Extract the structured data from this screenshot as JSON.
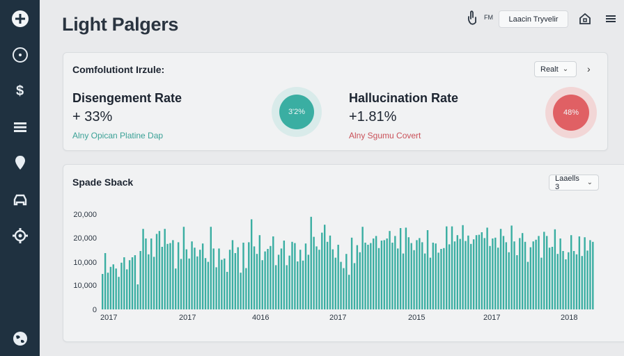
{
  "sidebar": {
    "items": [
      {
        "icon": "plus-circle-icon"
      },
      {
        "icon": "clock-icon"
      },
      {
        "icon": "dollar-icon"
      },
      {
        "icon": "list-icon"
      },
      {
        "icon": "pin-icon"
      },
      {
        "icon": "car-icon"
      },
      {
        "icon": "gear-icon"
      },
      {
        "icon": "globe-icon"
      }
    ]
  },
  "header": {
    "title": "Light Palgers",
    "fm_label": "FM",
    "travel_button": "Laacin Tryvelir"
  },
  "summary": {
    "heading": "Comfolutiont Irzule:",
    "select_label": "Realt",
    "metrics": [
      {
        "title": "Disengement Rate",
        "value": "+ 33%",
        "subtitle": "Alny Opican Platine Dap",
        "ring_label": "3'2%",
        "color": "#3aaea2"
      },
      {
        "title": "Hallucination Rate",
        "value": "+1.81%",
        "subtitle": "Alny Sgumu Covert",
        "ring_label": "48%",
        "color": "#e06064"
      }
    ]
  },
  "chart_panel": {
    "heading": "Spade Sback",
    "select_label": "Laaells 3"
  },
  "chart_data": {
    "type": "bar",
    "title": "Spade Sback",
    "y_tick_labels": [
      "0",
      "10,000",
      "10,000",
      "20,000",
      "20,000"
    ],
    "x_tick_labels": [
      "2017",
      "2017",
      "4016",
      "2017",
      "2015",
      "2017",
      "2018"
    ],
    "ylim": [
      0,
      25000
    ],
    "grid": false,
    "color": "#3aaea2",
    "values": [
      8500,
      13500,
      8800,
      10200,
      10800,
      9800,
      7800,
      11200,
      12500,
      9600,
      11800,
      12500,
      13000,
      6000,
      14000,
      19300,
      17000,
      13200,
      17000,
      12600,
      18100,
      18800,
      15000,
      19300,
      15700,
      15900,
      16600,
      9800,
      16100,
      12100,
      19800,
      14400,
      12200,
      16300,
      14800,
      12700,
      14300,
      15800,
      12300,
      11400,
      19800,
      14600,
      10100,
      14600,
      11900,
      12200,
      9000,
      14300,
      16600,
      13500,
      14900,
      8800,
      16000,
      9900,
      16100,
      21600,
      15100,
      13300,
      17800,
      11800,
      13900,
      14500,
      15200,
      17500,
      10600,
      13100,
      14600,
      16500,
      10600,
      12900,
      16200,
      15900,
      11500,
      14300,
      11700,
      15800,
      13100,
      22200,
      17400,
      15100,
      14300,
      18400,
      20300,
      16200,
      17700,
      14400,
      12400,
      15500,
      11400,
      9900,
      13300,
      8300,
      17200,
      11100,
      15400,
      13700,
      19800,
      16000,
      15500,
      15900,
      17000,
      17600,
      14700,
      16500,
      16600,
      17000,
      18800,
      16000,
      17600,
      14600,
      19500,
      13400,
      19600,
      17300,
      15900,
      14200,
      16600,
      17100,
      16100,
      13400,
      19000,
      12400,
      16000,
      15800,
      13600,
      14500,
      14700,
      19900,
      15600,
      19900,
      16300,
      17800,
      16900,
      20200,
      16400,
      17700,
      15700,
      16800,
      17800,
      17900,
      18500,
      17100,
      19600,
      15200,
      17000,
      17200,
      14800,
      19300,
      17600,
      16100,
      13700,
      20100,
      16300,
      13000,
      17100,
      18300,
      16200,
      11400,
      14900,
      16300,
      16700,
      17600,
      12400,
      18600,
      17600,
      14800,
      15000,
      19200,
      13300,
      17000,
      14000,
      12000,
      13700,
      17800,
      14000,
      13200,
      17500,
      12800,
      17300,
      14100,
      16600,
      16200
    ]
  }
}
